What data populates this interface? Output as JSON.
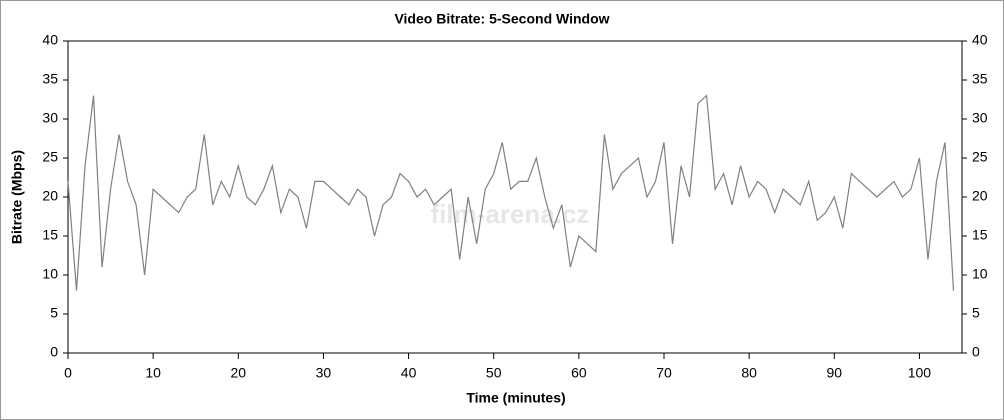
{
  "chart_data": {
    "type": "line",
    "title": "Video Bitrate: 5-Second Window",
    "x_label": "Time (minutes)",
    "y_label": "Bitrate (Mbps)",
    "watermark": "film-arena.cz",
    "color": "#808080",
    "x": [
      0,
      1,
      2,
      3,
      4,
      5,
      6,
      7,
      8,
      9,
      10,
      11,
      12,
      13,
      14,
      15,
      16,
      17,
      18,
      19,
      20,
      21,
      22,
      23,
      24,
      25,
      26,
      27,
      28,
      29,
      30,
      31,
      32,
      33,
      34,
      35,
      36,
      37,
      38,
      39,
      40,
      41,
      42,
      43,
      44,
      45,
      46,
      47,
      48,
      49,
      50,
      51,
      52,
      53,
      54,
      55,
      56,
      57,
      58,
      59,
      60,
      61,
      62,
      63,
      64,
      65,
      66,
      67,
      68,
      69,
      70,
      71,
      72,
      73,
      74,
      75,
      76,
      77,
      78,
      79,
      80,
      81,
      82,
      83,
      84,
      85,
      86,
      87,
      88,
      89,
      90,
      91,
      92,
      93,
      94,
      95,
      96,
      97,
      98,
      99,
      100,
      101,
      102,
      103,
      104
    ],
    "values": [
      22,
      8,
      24,
      33,
      11,
      21,
      28,
      22,
      19,
      10,
      21,
      20,
      19,
      18,
      20,
      21,
      28,
      19,
      22,
      20,
      24,
      20,
      19,
      21,
      24,
      18,
      21,
      20,
      16,
      22,
      22,
      21,
      20,
      19,
      21,
      20,
      15,
      19,
      20,
      23,
      22,
      20,
      21,
      19,
      20,
      21,
      12,
      20,
      14,
      21,
      23,
      27,
      21,
      22,
      22,
      25,
      20,
      16,
      19,
      11,
      15,
      14,
      13,
      28,
      21,
      23,
      24,
      25,
      20,
      22,
      27,
      14,
      24,
      20,
      32,
      33,
      21,
      23,
      19,
      24,
      20,
      22,
      21,
      18,
      21,
      20,
      19,
      22,
      17,
      18,
      20,
      16,
      23,
      22,
      21,
      20,
      21,
      22,
      20,
      21,
      25,
      12,
      22,
      27,
      8
    ],
    "xlim": [
      0,
      105
    ],
    "ylim": [
      0,
      40
    ],
    "xticks": [
      0,
      10,
      20,
      30,
      40,
      50,
      60,
      70,
      80,
      90,
      100
    ],
    "yticks": [
      0,
      5,
      10,
      15,
      20,
      25,
      30,
      35,
      40
    ]
  }
}
